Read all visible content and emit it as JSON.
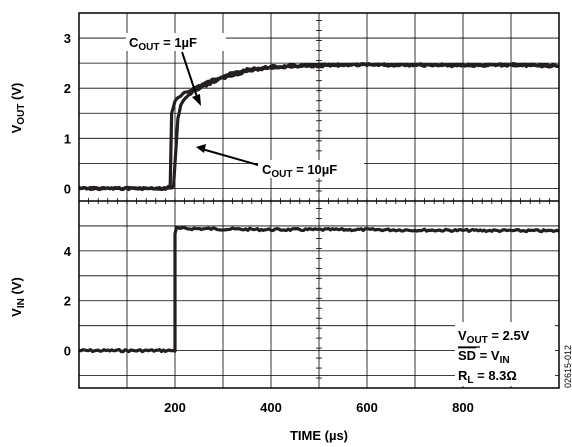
{
  "chart_data": {
    "type": "line",
    "x_axis": {
      "label": "TIME (µs)",
      "range": [
        0,
        1000
      ],
      "tick_values": [
        200,
        400,
        600,
        800
      ],
      "tick_labels": [
        "200",
        "400",
        "600",
        "800"
      ]
    },
    "panels": [
      {
        "id": "vout",
        "ylabel_main": "V",
        "ylabel_sub": "OUT",
        "ylabel_unit": " (V)",
        "ylim": [
          -0.25,
          3.5
        ],
        "tick_values": [
          0,
          1,
          2,
          3
        ],
        "tick_labels": [
          "0",
          "1",
          "2",
          "3"
        ],
        "series": [
          {
            "name": "COUT = 1µF",
            "points": [
              [
                0,
                0.0
              ],
              [
                180,
                0.0
              ],
              [
                190,
                0.05
              ],
              [
                193,
                1.5
              ],
              [
                200,
                1.75
              ],
              [
                220,
                1.9
              ],
              [
                250,
                2.05
              ],
              [
                300,
                2.25
              ],
              [
                350,
                2.37
              ],
              [
                400,
                2.43
              ],
              [
                500,
                2.46
              ],
              [
                600,
                2.47
              ],
              [
                700,
                2.47
              ],
              [
                800,
                2.46
              ],
              [
                900,
                2.47
              ],
              [
                1000,
                2.45
              ]
            ]
          },
          {
            "name": "COUT = 10µF",
            "points": [
              [
                0,
                0.0
              ],
              [
                190,
                0.0
              ],
              [
                197,
                0.05
              ],
              [
                206,
                1.4
              ],
              [
                212,
                1.65
              ],
              [
                225,
                1.85
              ],
              [
                250,
                2.0
              ],
              [
                300,
                2.2
              ],
              [
                350,
                2.34
              ],
              [
                400,
                2.41
              ],
              [
                500,
                2.45
              ],
              [
                600,
                2.46
              ],
              [
                700,
                2.46
              ],
              [
                800,
                2.45
              ],
              [
                900,
                2.46
              ],
              [
                1000,
                2.44
              ]
            ]
          }
        ]
      },
      {
        "id": "vin",
        "ylabel_main": "V",
        "ylabel_sub": "IN",
        "ylabel_unit": " (V)",
        "ylim": [
          -1.5,
          6.0
        ],
        "tick_values": [
          0,
          2,
          4
        ],
        "tick_labels": [
          "0",
          "2",
          "4"
        ],
        "series": [
          {
            "name": "VIN",
            "points": [
              [
                0,
                0.0
              ],
              [
                200,
                0.0
              ],
              [
                200,
                4.7
              ],
              [
                203,
                4.9
              ],
              [
                400,
                4.85
              ],
              [
                600,
                4.85
              ],
              [
                800,
                4.82
              ],
              [
                1000,
                4.8
              ]
            ]
          }
        ]
      }
    ],
    "annotations": {
      "cout1": {
        "main": "C",
        "sub": "OUT",
        "rest": " = 1µF"
      },
      "cout10": {
        "main": "C",
        "sub": "OUT",
        "rest": " = 10µF"
      },
      "cond_vout": {
        "main": "V",
        "sub": "OUT",
        "rest": " = 2.5V"
      },
      "cond_sd": {
        "main": "SD",
        "mid": " = V",
        "sub": "IN"
      },
      "cond_rl": {
        "main": "R",
        "sub": "L",
        "rest": " = 8.3Ω"
      }
    },
    "figure_id": "02615-012",
    "grid": true,
    "colors": {
      "trace": "#231f20",
      "grid": "#000000"
    }
  }
}
